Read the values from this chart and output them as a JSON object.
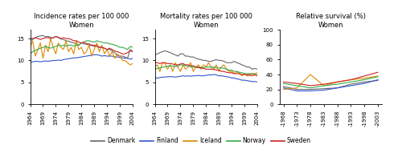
{
  "incidence": {
    "title": "Incidence rates per 100 000\nWomen",
    "years": [
      1964,
      1965,
      1966,
      1967,
      1968,
      1969,
      1970,
      1971,
      1972,
      1973,
      1974,
      1975,
      1976,
      1977,
      1978,
      1979,
      1980,
      1981,
      1982,
      1983,
      1984,
      1985,
      1986,
      1987,
      1988,
      1989,
      1990,
      1991,
      1992,
      1993,
      1994,
      1995,
      1996,
      1997,
      1998,
      1999,
      2000,
      2001,
      2002,
      2003,
      2004
    ],
    "Denmark": [
      14.5,
      14.8,
      15.2,
      15.5,
      15.6,
      15.7,
      15.4,
      15.5,
      15.3,
      15.1,
      15.5,
      15.2,
      14.9,
      14.8,
      14.5,
      14.4,
      14.2,
      14.0,
      13.8,
      13.5,
      14.0,
      13.8,
      13.7,
      13.5,
      13.4,
      13.2,
      13.5,
      13.0,
      13.0,
      12.8,
      12.5,
      12.5,
      12.2,
      11.8,
      11.2,
      11.0,
      11.0,
      10.8,
      10.5,
      12.5,
      12.2
    ],
    "Finland": [
      9.6,
      9.7,
      9.8,
      9.8,
      9.7,
      9.8,
      9.9,
      9.8,
      9.9,
      10.0,
      10.0,
      10.1,
      10.0,
      10.2,
      10.3,
      10.4,
      10.5,
      10.6,
      10.6,
      10.7,
      10.8,
      10.9,
      11.0,
      11.1,
      11.2,
      11.3,
      11.3,
      11.2,
      11.0,
      11.1,
      11.0,
      11.0,
      11.0,
      10.8,
      10.8,
      10.7,
      10.6,
      10.5,
      10.5,
      10.3,
      10.5
    ],
    "Iceland": [
      13.0,
      14.5,
      11.0,
      12.5,
      14.0,
      10.5,
      13.5,
      12.0,
      15.0,
      13.0,
      11.5,
      14.0,
      13.0,
      12.5,
      14.5,
      12.0,
      13.0,
      11.5,
      14.5,
      12.5,
      13.0,
      11.5,
      12.0,
      13.5,
      11.0,
      12.5,
      14.0,
      12.0,
      13.5,
      11.5,
      12.5,
      11.0,
      12.0,
      10.5,
      11.5,
      11.0,
      10.0,
      10.0,
      9.5,
      9.0,
      9.3
    ],
    "Norway": [
      11.5,
      12.0,
      12.3,
      12.5,
      12.8,
      13.0,
      13.2,
      13.0,
      12.8,
      13.0,
      13.2,
      13.5,
      13.3,
      13.5,
      13.3,
      13.5,
      13.5,
      13.3,
      13.5,
      13.5,
      14.0,
      14.2,
      14.5,
      14.5,
      14.3,
      14.2,
      14.5,
      14.3,
      14.2,
      14.0,
      14.0,
      13.8,
      13.7,
      13.5,
      13.3,
      13.0,
      13.0,
      12.8,
      12.5,
      13.2,
      13.0
    ],
    "Sweden": [
      15.0,
      15.0,
      15.2,
      15.0,
      14.8,
      15.0,
      15.2,
      15.2,
      15.0,
      15.2,
      15.5,
      15.3,
      15.0,
      15.2,
      15.0,
      15.0,
      14.8,
      14.5,
      14.5,
      14.2,
      14.0,
      14.2,
      13.8,
      13.8,
      13.5,
      13.5,
      13.2,
      13.0,
      13.0,
      12.8,
      12.5,
      12.8,
      12.5,
      12.2,
      12.0,
      11.8,
      11.5,
      11.5,
      11.8,
      12.2,
      12.0
    ]
  },
  "mortality": {
    "title": "Mortality rates per 100 000\nWomen",
    "years": [
      1964,
      1965,
      1966,
      1967,
      1968,
      1969,
      1970,
      1971,
      1972,
      1973,
      1974,
      1975,
      1976,
      1977,
      1978,
      1979,
      1980,
      1981,
      1982,
      1983,
      1984,
      1985,
      1986,
      1987,
      1988,
      1989,
      1990,
      1991,
      1992,
      1993,
      1994,
      1995,
      1996,
      1997,
      1998,
      1999,
      2000,
      2001,
      2002,
      2003,
      2004
    ],
    "Denmark": [
      11.3,
      11.5,
      11.8,
      12.0,
      12.2,
      12.0,
      11.8,
      11.5,
      11.3,
      11.0,
      11.5,
      11.5,
      11.0,
      11.0,
      10.8,
      10.8,
      10.5,
      10.3,
      10.2,
      10.0,
      10.0,
      9.8,
      9.8,
      10.0,
      10.2,
      10.0,
      10.0,
      9.8,
      9.5,
      9.5,
      9.5,
      9.8,
      9.5,
      9.3,
      9.0,
      8.8,
      8.5,
      8.5,
      8.0,
      8.2,
      8.0
    ],
    "Finland": [
      6.0,
      6.0,
      6.1,
      6.2,
      6.2,
      6.3,
      6.3,
      6.3,
      6.2,
      6.3,
      6.4,
      6.5,
      6.4,
      6.5,
      6.4,
      6.5,
      6.5,
      6.6,
      6.5,
      6.5,
      6.6,
      6.7,
      6.7,
      6.8,
      6.7,
      6.5,
      6.5,
      6.4,
      6.3,
      6.2,
      6.0,
      6.0,
      5.8,
      5.7,
      5.5,
      5.5,
      5.4,
      5.3,
      5.2,
      5.2,
      5.1
    ],
    "Iceland": [
      8.5,
      9.0,
      7.5,
      9.5,
      9.3,
      8.0,
      9.0,
      7.5,
      9.5,
      8.5,
      7.5,
      9.0,
      8.0,
      8.5,
      9.5,
      7.5,
      8.5,
      9.0,
      8.0,
      9.0,
      8.5,
      9.5,
      8.5,
      8.0,
      9.0,
      7.5,
      8.5,
      9.0,
      8.0,
      7.5,
      7.5,
      7.0,
      7.5,
      7.0,
      6.5,
      7.0,
      6.5,
      6.5,
      7.0,
      7.0,
      7.2
    ],
    "Norway": [
      8.0,
      8.2,
      8.3,
      8.5,
      8.5,
      8.7,
      8.8,
      8.7,
      8.6,
      8.7,
      9.0,
      9.0,
      8.8,
      8.8,
      8.5,
      8.5,
      8.5,
      8.3,
      8.5,
      8.3,
      8.5,
      8.5,
      8.5,
      8.5,
      8.3,
      8.3,
      8.3,
      8.2,
      8.0,
      7.8,
      7.8,
      7.5,
      7.5,
      7.3,
      7.2,
      7.0,
      7.0,
      7.0,
      7.0,
      6.8,
      6.8
    ],
    "Sweden": [
      9.5,
      9.5,
      9.3,
      9.5,
      9.5,
      9.3,
      9.3,
      9.2,
      9.0,
      9.0,
      9.2,
      9.3,
      9.0,
      9.0,
      8.8,
      8.8,
      8.5,
      8.5,
      8.3,
      8.2,
      8.0,
      8.0,
      8.0,
      8.0,
      7.8,
      7.8,
      7.5,
      7.5,
      7.3,
      7.2,
      7.2,
      7.0,
      7.0,
      7.0,
      6.8,
      6.8,
      6.7,
      6.8,
      6.5,
      6.7,
      6.5
    ]
  },
  "survival": {
    "title": "Relative survival (%)\nWomen",
    "periods": [
      "-1968",
      "-1973",
      "-1978",
      "-1983",
      "-1988",
      "-1993",
      "-1998",
      "-2003"
    ],
    "Denmark": [
      24.0,
      20.0,
      20.0,
      21.0,
      22.0,
      27.0,
      30.0,
      32.0
    ],
    "Finland": [
      22.0,
      18.0,
      18.0,
      19.0,
      22.0,
      25.0,
      28.0,
      33.0
    ],
    "Iceland": [
      20.0,
      22.0,
      40.0,
      25.0,
      30.0,
      33.0,
      35.0,
      38.0
    ],
    "Norway": [
      28.0,
      25.0,
      22.0,
      25.0,
      27.0,
      30.0,
      33.0,
      37.0
    ],
    "Sweden": [
      30.0,
      28.0,
      25.0,
      27.0,
      30.0,
      33.0,
      38.0,
      43.0
    ]
  },
  "colors": {
    "Denmark": "#666666",
    "Finland": "#3355cc",
    "Iceland": "#dd8800",
    "Norway": "#33aa44",
    "Sweden": "#cc2222"
  },
  "ylim_incidence": [
    0,
    17
  ],
  "ylim_mortality": [
    0,
    17
  ],
  "ylim_survival": [
    0,
    100
  ],
  "yticks_incidence": [
    0,
    5,
    10,
    15
  ],
  "yticks_mortality": [
    0,
    5,
    10,
    15
  ],
  "yticks_survival": [
    0,
    20,
    40,
    60,
    80,
    100
  ],
  "xticks_main": [
    1964,
    1969,
    1974,
    1979,
    1984,
    1989,
    1994,
    1999,
    2004
  ],
  "xticklabels_main": [
    "1964",
    "1969",
    "1974",
    "1979",
    "1984",
    "1989",
    "1994",
    "1999",
    "2004"
  ],
  "legend_order": [
    "Denmark",
    "Finland",
    "Iceland",
    "Norway",
    "Sweden"
  ]
}
